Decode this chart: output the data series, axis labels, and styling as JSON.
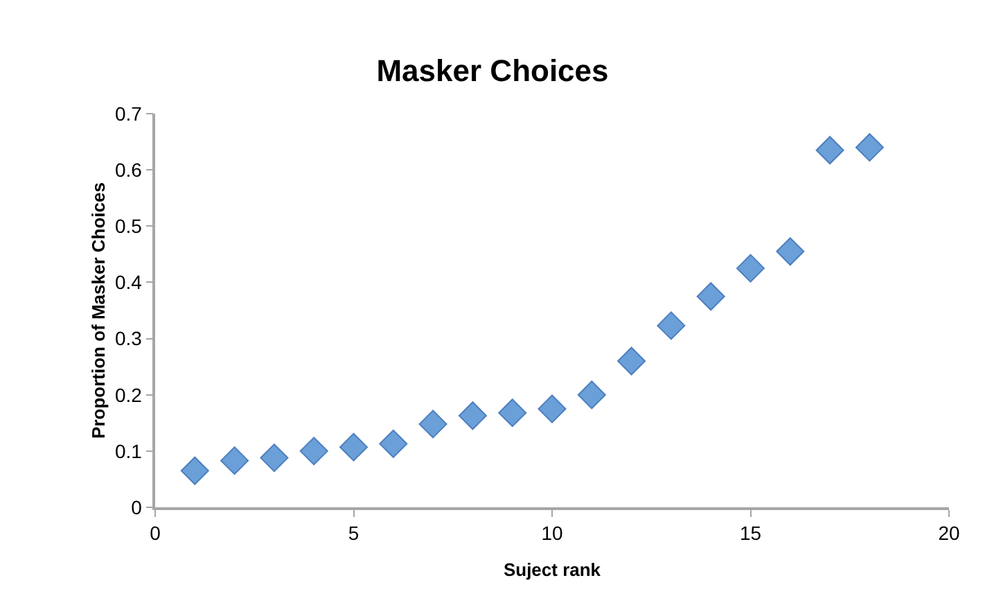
{
  "chart_data": {
    "type": "scatter",
    "title": "Masker Choices",
    "xlabel": "Suject rank",
    "ylabel": "Proportion of Masker Choices",
    "x": [
      1,
      2,
      3,
      4,
      5,
      6,
      7,
      8,
      9,
      10,
      11,
      12,
      13,
      14,
      15,
      16,
      17,
      18
    ],
    "series": [
      {
        "color": "#6a9fd8",
        "values": [
          0.065,
          0.083,
          0.088,
          0.1,
          0.107,
          0.113,
          0.148,
          0.163,
          0.168,
          0.175,
          0.2,
          0.26,
          0.323,
          0.375,
          0.425,
          0.455,
          0.635,
          0.64
        ]
      }
    ],
    "xlim": [
      0,
      20
    ],
    "xticks": [
      0,
      5,
      10,
      15,
      20
    ],
    "ylim": [
      0,
      0.7
    ],
    "yticks": [
      0,
      0.1,
      0.2,
      0.3,
      0.4,
      0.5,
      0.6,
      0.7
    ],
    "marker": "diamond",
    "grid": false,
    "legend": false
  }
}
